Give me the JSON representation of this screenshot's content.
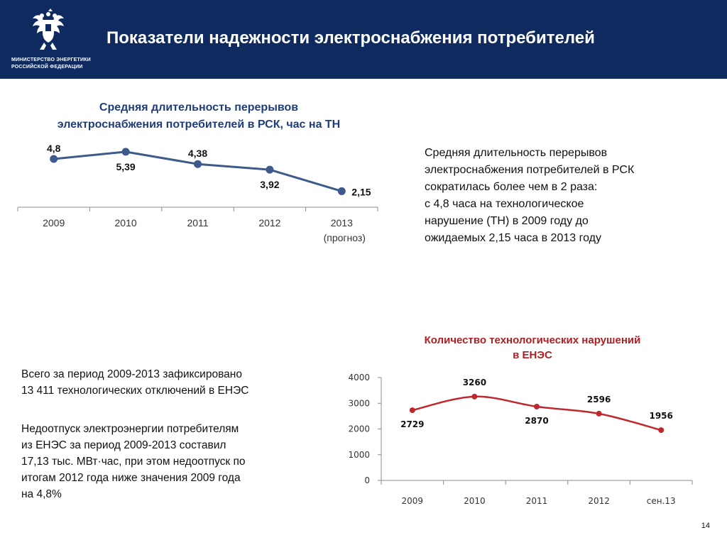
{
  "header": {
    "title": "Показатели надежности электроснабжения потребителей",
    "ministry_line1": "МИНИСТЕРСТВО ЭНЕРГЕТИКИ",
    "ministry_line2": "РОССИЙСКОЙ ФЕДЕРАЦИИ",
    "emblem_icon": "double-headed-eagle-icon"
  },
  "colors": {
    "header_bg": "#0f2a5f",
    "chart1_line": "#3d5a8a",
    "chart2_line": "#c0272d",
    "chart1_title": "#1f3d7a",
    "chart2_title": "#b01e23"
  },
  "description": {
    "lines": [
      "Средняя длительность перерывов",
      "электроснабжения потребителей в РСК",
      "сократилась более чем в 2 раза:",
      "с 4,8 часа на технологическое",
      "нарушение (ТН) в 2009 году до",
      "ожидаемых 2,15 часа в 2013 году"
    ]
  },
  "text_block1": {
    "lines": [
      "Всего за период 2009-2013 зафиксировано",
      "13 411 технологических отключений в ЕНЭС"
    ]
  },
  "text_block2": {
    "lines": [
      "Недоотпуск электроэнергии потребителям",
      "из ЕНЭС за период 2009-2013 составил",
      "17,13 тыс. МВт·час, при этом недоотпуск по",
      "итогам 2012 года ниже значения 2009 года",
      "на 4,8%"
    ]
  },
  "page_number": "14",
  "chart_data": [
    {
      "type": "line",
      "title": "Средняя длительность перерывов электроснабжения потребителей в РСК, час на ТН",
      "title_lines": [
        "Средняя длительность перерывов",
        "электроснабжения потребителей в РСК, час на ТН"
      ],
      "categories": [
        "2009",
        "2010",
        "2011",
        "2012",
        "2013"
      ],
      "category_sublabels": [
        "",
        "",
        "",
        "",
        "(прогноз)"
      ],
      "values": [
        4.8,
        5.39,
        4.38,
        3.92,
        2.15
      ],
      "data_labels": [
        "4,8",
        "5,39",
        "4,38",
        "3,92",
        "2,15"
      ],
      "label_positions": [
        "above",
        "below",
        "above",
        "below",
        "right"
      ],
      "y_axis_visible": false,
      "grid": false
    },
    {
      "type": "line",
      "title": "Количество технологических нарушений в ЕНЭС",
      "title_lines": [
        "Количество технологических нарушений",
        "в ЕНЭС"
      ],
      "categories": [
        "2009",
        "2010",
        "2011",
        "2012",
        "сен.13"
      ],
      "values": [
        2729,
        3260,
        2870,
        2596,
        1956
      ],
      "data_labels": [
        "2729",
        "3260",
        "2870",
        "2596",
        "1956"
      ],
      "label_positions": [
        "below",
        "above",
        "below",
        "above",
        "above"
      ],
      "ylim": [
        0,
        4000
      ],
      "yticks": [
        "0",
        "1000",
        "2000",
        "3000",
        "4000"
      ],
      "smooth": true,
      "grid": false
    }
  ]
}
